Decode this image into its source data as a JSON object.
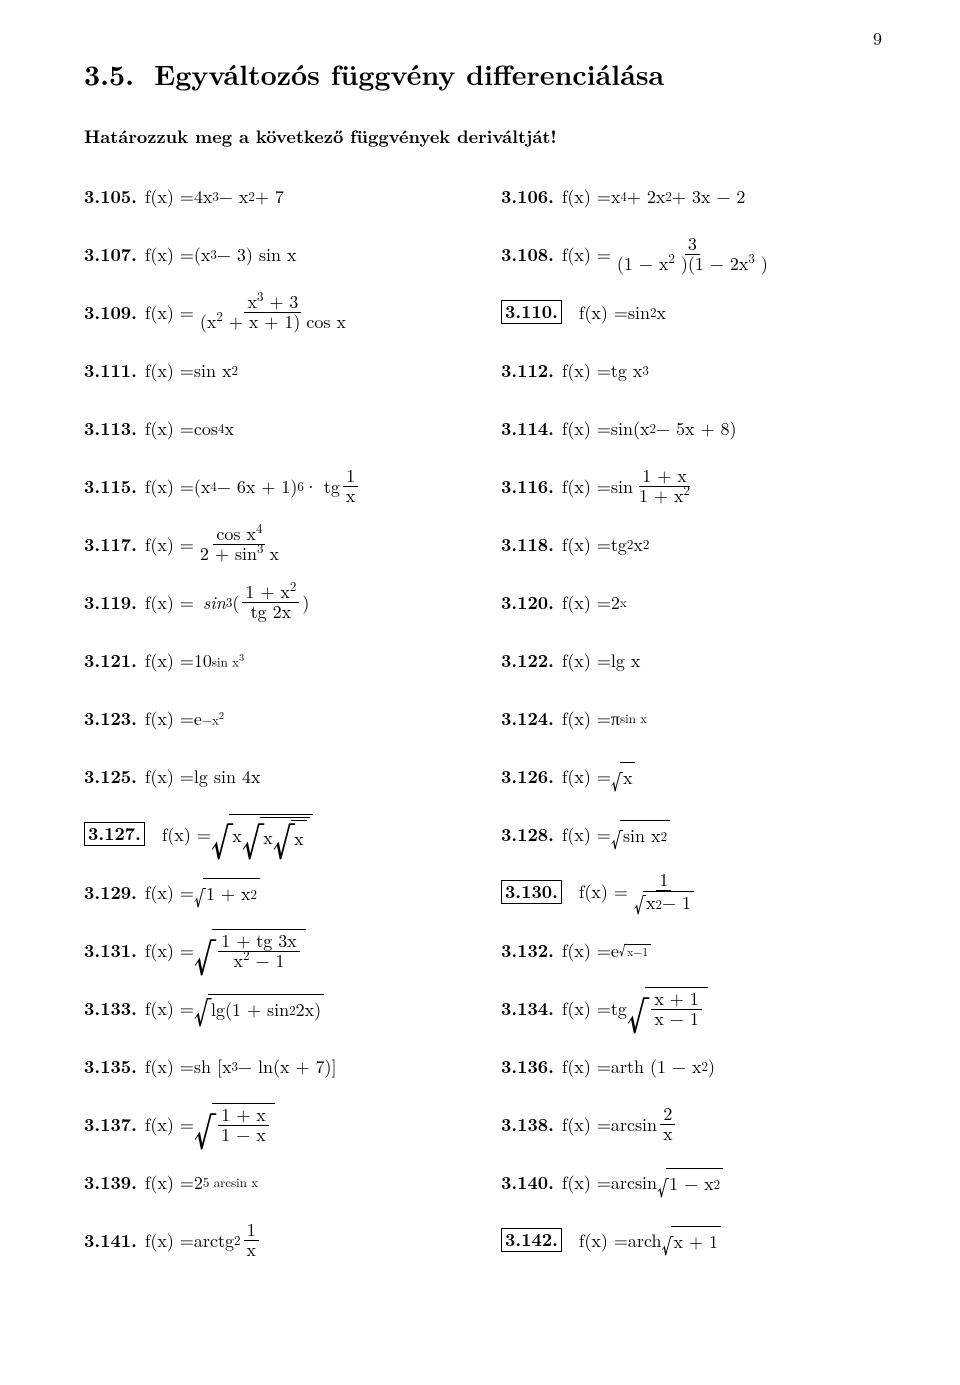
{
  "page_number": "9",
  "section_number": "3.5.",
  "section_title": "Egyváltozós függvény differenciálása",
  "intro": "Határozzuk meg a következő függvények deriváltját!",
  "p": {
    "105": "3.105.",
    "106": "3.106.",
    "107": "3.107.",
    "108": "3.108.",
    "109": "3.109.",
    "110": "3.110.",
    "111": "3.111.",
    "112": "3.112.",
    "113": "3.113.",
    "114": "3.114.",
    "115": "3.115.",
    "116": "3.116.",
    "117": "3.117.",
    "118": "3.118.",
    "119": "3.119.",
    "120": "3.120.",
    "121": "3.121.",
    "122": "3.122.",
    "123": "3.123.",
    "124": "3.124.",
    "125": "3.125.",
    "126": "3.126.",
    "127": "3.127.",
    "128": "3.128.",
    "129": "3.129.",
    "130": "3.130.",
    "131": "3.131.",
    "132": "3.132.",
    "133": "3.133.",
    "134": "3.134.",
    "135": "3.135.",
    "136": "3.136.",
    "137": "3.137.",
    "138": "3.138.",
    "139": "3.139.",
    "140": "3.140.",
    "141": "3.141.",
    "142": "3.142."
  },
  "t": {
    "fx_eq": "f(x) = ",
    "fx_eq_i": "f(x) =",
    "4x3mx2p7": "4x",
    "x4p2x2p3xm2_a": "x",
    "x4p2x2p3xm2_b": " + 2x",
    "x4p2x2p3xm2_c": " + 3x − 2",
    "mx2p7": " − x",
    "p7": " + 7",
    "x3m3sinx_a": "(x",
    "x3m3sinx_b": " − 3) sin x",
    "frac3_num": "3",
    "frac3_den_a": "(1 − x",
    "frac3_den_b": ")(1 − 2x",
    "frac3_den_c": ")",
    "x3p3": "x",
    "p3": " + 3",
    "x2pxp1cosx_a": "(x",
    "x2pxp1cosx_b": " + x + 1) cos x",
    "sin2x": "sin",
    "sp_x": " x",
    "sinx2": "sin x",
    "tgx3": "tg x",
    "cos4x": "cos",
    "sinx2m5xp8_a": "sin(x",
    "sinx2m5xp8_b": " − 5x + 8)",
    "x4m6xp1_a": "(x",
    "x4m6xp1_b": " − 6x + 1)",
    "dot_tg": " · tg ",
    "one": "1",
    "x": "x",
    "sin_sp": "sin ",
    "1px": "1 + x",
    "1px2": "1 + x",
    "cosx4": "cos x",
    "2psin3x_a": "2 + sin",
    "tg2x2_a": "tg ",
    "tg2x2_b": "x",
    "sin3_a": "sin",
    "lparen": "(",
    "rparen": ")",
    "tg2x": "tg 2x",
    "2x": "2",
    "10": "10",
    "sinx3_sup": "sin x",
    "lgx": "lg x",
    "e": "e",
    "mx2_sup": "−x",
    "pi": "π",
    "sinx_sup": "sin x",
    "lgsin4x": "lg sin 4x",
    "sqrt_x": "x",
    "xrxrx_a": "x",
    "sinx2b": "sin x",
    "1px2b": "1 + x",
    "x2m1": "x",
    "m1": " − 1",
    "1ptg3x": "1 + tg 3x",
    "esqrt": "e",
    "xm1": "x−1",
    "lg1sin22x_a": "lg(1 + sin",
    "lg1sin22x_b": " 2x)",
    "tg_sp": "tg ",
    "xp1": "x + 1",
    "sh_a": "sh [x",
    "sh_b": " − ln(x + 7)]",
    "arth_a": "arth (1 − x",
    "arth_b": ")",
    "1mx": "1 − x",
    "arcsin_sp": "arcsin ",
    "two": "2",
    "2pow": "2",
    "5arcsinx": "5 arcsin x",
    "arcsin_sqrt": "arcsin ",
    "1mx2": "1 − x",
    "arctg_sp": "arctg ",
    "arch_sp": "arch ",
    "xp1b": "x + 1",
    "sup2": "2",
    "sup3": "3",
    "sup4": "4",
    "sup6": "6",
    "supx": "x"
  }
}
